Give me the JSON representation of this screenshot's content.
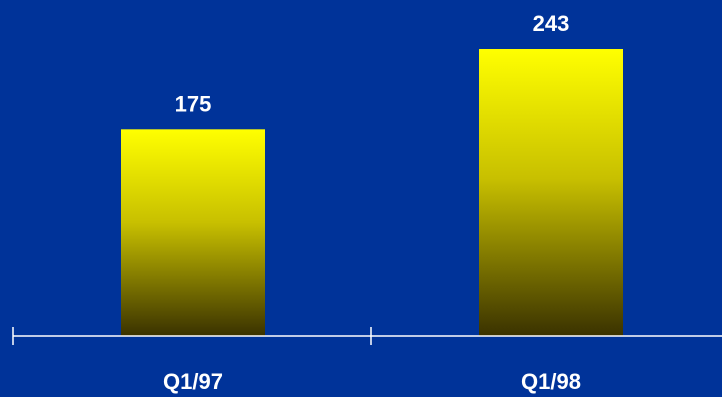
{
  "chart_data": {
    "type": "bar",
    "categories": [
      "Q1/97",
      "Q1/98"
    ],
    "values": [
      175,
      243
    ],
    "value_labels": [
      "175",
      "243"
    ],
    "ylim": [
      0,
      265
    ],
    "grid": false,
    "colors": {
      "background": "#003399",
      "bar_top": "#ffff00",
      "bar_bottom": "#3a3200",
      "axis": "#ffffff",
      "text": "#ffffff"
    }
  }
}
